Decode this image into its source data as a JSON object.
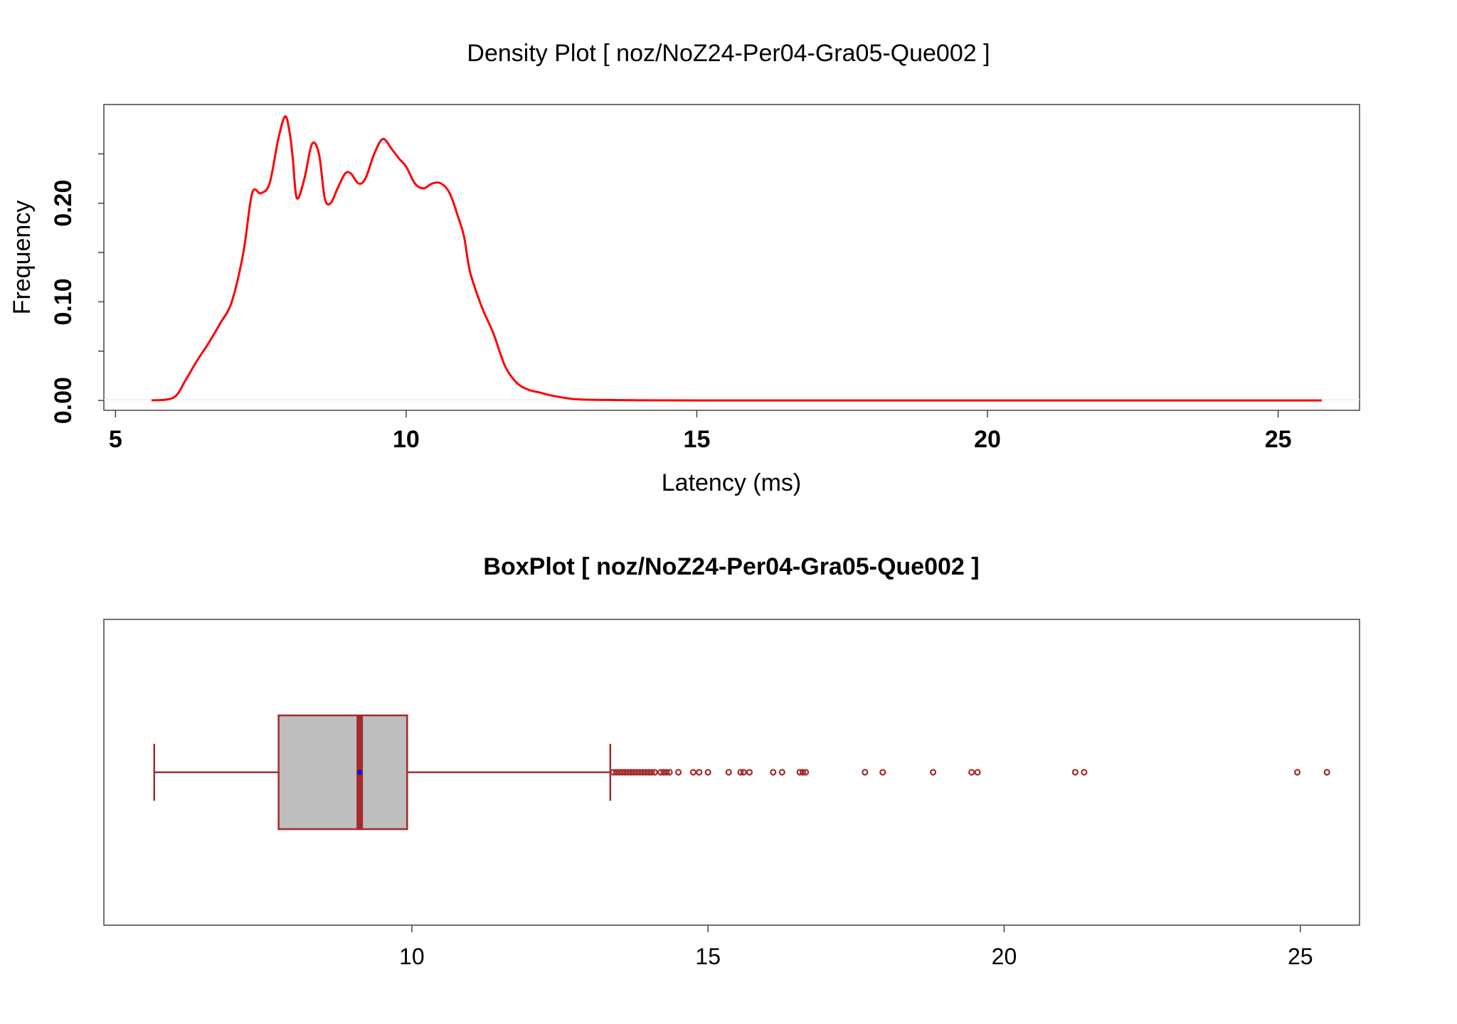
{
  "chart_data": [
    {
      "type": "line",
      "title": "Density Plot [ noz/NoZ24-Per04-Gra05-Que002 ]",
      "xlabel": "Latency (ms)",
      "ylabel": "Frequency",
      "xlim": [
        4.8,
        26.4
      ],
      "ylim": [
        -0.01,
        0.3
      ],
      "x_ticks": [
        5,
        10,
        15,
        20,
        25
      ],
      "x_tick_labels": [
        "5",
        "10",
        "15",
        "20",
        "25"
      ],
      "y_ticks_labeled": [
        0.0,
        0.1,
        0.2
      ],
      "y_tick_labels": [
        "0.00",
        "0.10",
        "0.20"
      ],
      "y_ticks_minor": [
        0.05,
        0.15,
        0.25
      ],
      "line_color": "#ff0000",
      "series": [
        {
          "x": [
            5.62,
            6.0,
            6.2,
            6.4,
            6.6,
            6.8,
            7.0,
            7.2,
            7.35,
            7.5,
            7.65,
            7.8,
            7.92,
            8.0,
            8.05,
            8.12,
            8.25,
            8.38,
            8.5,
            8.6,
            8.7,
            8.82,
            8.95,
            9.05,
            9.18,
            9.3,
            9.45,
            9.6,
            9.75,
            9.88,
            10.0,
            10.15,
            10.3,
            10.45,
            10.6,
            10.75,
            10.9,
            11.0,
            11.1,
            11.3,
            11.5,
            11.7,
            11.9,
            12.1,
            12.3,
            12.5,
            12.8,
            13.0,
            13.5,
            14.0,
            15.0,
            17.0,
            20.0,
            23.0,
            25.75
          ],
          "y": [
            0.0,
            0.003,
            0.02,
            0.04,
            0.058,
            0.078,
            0.1,
            0.15,
            0.21,
            0.21,
            0.22,
            0.265,
            0.288,
            0.27,
            0.245,
            0.205,
            0.225,
            0.26,
            0.25,
            0.205,
            0.2,
            0.215,
            0.23,
            0.23,
            0.22,
            0.225,
            0.25,
            0.265,
            0.255,
            0.245,
            0.237,
            0.22,
            0.215,
            0.22,
            0.22,
            0.21,
            0.185,
            0.165,
            0.13,
            0.095,
            0.068,
            0.035,
            0.018,
            0.011,
            0.008,
            0.005,
            0.002,
            0.001,
            0.0005,
            0.0002,
            0.0,
            0.0,
            0.0,
            0.0,
            0.0
          ]
        }
      ]
    },
    {
      "type": "box",
      "title": "BoxPlot [ noz/NoZ24-Per04-Gra05-Que002 ]",
      "xlim": [
        4.8,
        26.0
      ],
      "x_ticks": [
        10,
        15,
        20,
        25
      ],
      "x_tick_labels": [
        "10",
        "15",
        "20",
        "25"
      ],
      "whisker_low": 5.65,
      "q1": 7.75,
      "median": 9.12,
      "mean": 9.12,
      "q3": 9.92,
      "whisker_high": 13.35,
      "outliers": [
        13.4,
        13.45,
        13.5,
        13.55,
        13.6,
        13.65,
        13.7,
        13.75,
        13.8,
        13.85,
        13.9,
        13.95,
        14.0,
        14.05,
        14.1,
        14.2,
        14.25,
        14.3,
        14.35,
        14.5,
        14.75,
        14.85,
        15.0,
        15.35,
        15.55,
        15.6,
        15.7,
        16.1,
        16.25,
        16.55,
        16.6,
        16.65,
        17.65,
        17.95,
        18.8,
        19.45,
        19.55,
        21.2,
        21.35,
        24.95,
        25.45
      ],
      "box_fill": "#bebebe",
      "box_color": "#a52a2a",
      "mean_color": "#0000ff"
    }
  ]
}
